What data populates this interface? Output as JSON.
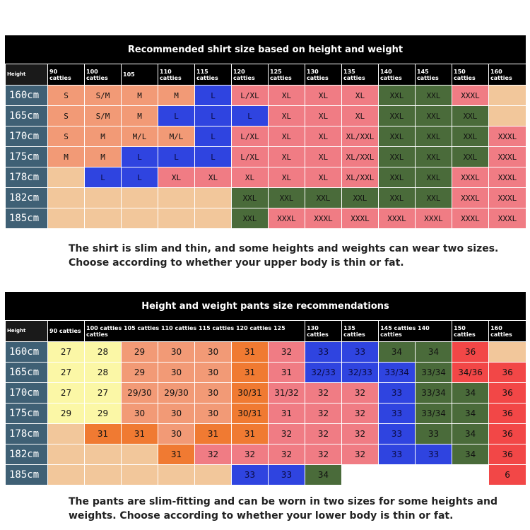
{
  "colors": {
    "tan": "#f2c79b",
    "salmon": "#f29a76",
    "blue": "#2f44e0",
    "pink": "#f07c84",
    "green": "#4a6b3a",
    "orange": "#f07a32",
    "yellow": "#fbf7a6",
    "red": "#f24747"
  },
  "shirt": {
    "title": "Recommended shirt size based on height and weight",
    "corner_label": "Height",
    "columns": [
      {
        "num": "90",
        "unit": "catties"
      },
      {
        "num": "100",
        "unit": "catties"
      },
      {
        "num": "105",
        "unit": ""
      },
      {
        "num": "110",
        "unit": "catties"
      },
      {
        "num": "115",
        "unit": "catties"
      },
      {
        "num": "120",
        "unit": "catties"
      },
      {
        "num": "125",
        "unit": "catties"
      },
      {
        "num": "130",
        "unit": "catties"
      },
      {
        "num": "135",
        "unit": "catties"
      },
      {
        "num": "140",
        "unit": "catties"
      },
      {
        "num": "145",
        "unit": "catties"
      },
      {
        "num": "150",
        "unit": "catties"
      },
      {
        "num": "160",
        "unit": "catties"
      }
    ],
    "rows": [
      {
        "height": "160cm",
        "cells": [
          {
            "v": "S",
            "c": "salmon"
          },
          {
            "v": "S/M",
            "c": "salmon"
          },
          {
            "v": "M",
            "c": "salmon"
          },
          {
            "v": "M",
            "c": "salmon"
          },
          {
            "v": "L",
            "c": "blue"
          },
          {
            "v": "L/XL",
            "c": "pink"
          },
          {
            "v": "XL",
            "c": "pink"
          },
          {
            "v": "XL",
            "c": "pink"
          },
          {
            "v": "XL",
            "c": "pink"
          },
          {
            "v": "XXL",
            "c": "green"
          },
          {
            "v": "XXL",
            "c": "green"
          },
          {
            "v": "XXXL",
            "c": "pink"
          },
          {
            "v": "",
            "c": "tan"
          }
        ]
      },
      {
        "height": "165cm",
        "cells": [
          {
            "v": "S",
            "c": "salmon"
          },
          {
            "v": "S/M",
            "c": "salmon"
          },
          {
            "v": "M",
            "c": "salmon"
          },
          {
            "v": "L",
            "c": "blue"
          },
          {
            "v": "L",
            "c": "blue"
          },
          {
            "v": "L",
            "c": "blue"
          },
          {
            "v": "XL",
            "c": "pink"
          },
          {
            "v": "XL",
            "c": "pink"
          },
          {
            "v": "XL",
            "c": "pink"
          },
          {
            "v": "XXL",
            "c": "green"
          },
          {
            "v": "XXL",
            "c": "green"
          },
          {
            "v": "XXL",
            "c": "green"
          },
          {
            "v": "",
            "c": "tan"
          }
        ]
      },
      {
        "height": "170cm",
        "cells": [
          {
            "v": "S",
            "c": "salmon"
          },
          {
            "v": "M",
            "c": "salmon"
          },
          {
            "v": "M/L",
            "c": "salmon"
          },
          {
            "v": "M/L",
            "c": "salmon"
          },
          {
            "v": "L",
            "c": "blue"
          },
          {
            "v": "L/XL",
            "c": "pink"
          },
          {
            "v": "XL",
            "c": "pink"
          },
          {
            "v": "XL",
            "c": "pink"
          },
          {
            "v": "XL/XXL",
            "c": "pink"
          },
          {
            "v": "XXL",
            "c": "green"
          },
          {
            "v": "XXL",
            "c": "green"
          },
          {
            "v": "XXL",
            "c": "green"
          },
          {
            "v": "XXXL",
            "c": "pink"
          }
        ]
      },
      {
        "height": "175cm",
        "cells": [
          {
            "v": "M",
            "c": "salmon"
          },
          {
            "v": "M",
            "c": "salmon"
          },
          {
            "v": "L",
            "c": "blue"
          },
          {
            "v": "L",
            "c": "blue"
          },
          {
            "v": "L",
            "c": "blue"
          },
          {
            "v": "L/XL",
            "c": "pink"
          },
          {
            "v": "XL",
            "c": "pink"
          },
          {
            "v": "XL",
            "c": "pink"
          },
          {
            "v": "XL/XXL",
            "c": "pink"
          },
          {
            "v": "XXL",
            "c": "green"
          },
          {
            "v": "XXL",
            "c": "green"
          },
          {
            "v": "XXL",
            "c": "green"
          },
          {
            "v": "XXXL",
            "c": "pink"
          }
        ]
      },
      {
        "height": "178cm",
        "cells": [
          {
            "v": "",
            "c": "tan"
          },
          {
            "v": "L",
            "c": "blue"
          },
          {
            "v": "L",
            "c": "blue"
          },
          {
            "v": "XL",
            "c": "pink"
          },
          {
            "v": "XL",
            "c": "pink"
          },
          {
            "v": "XL",
            "c": "pink"
          },
          {
            "v": "XL",
            "c": "pink"
          },
          {
            "v": "XL",
            "c": "pink"
          },
          {
            "v": "XL/XXL",
            "c": "pink"
          },
          {
            "v": "XXL",
            "c": "green"
          },
          {
            "v": "XXL",
            "c": "green"
          },
          {
            "v": "XXXL",
            "c": "pink"
          },
          {
            "v": "XXXL",
            "c": "pink"
          }
        ]
      },
      {
        "height": "182cm",
        "cells": [
          {
            "v": "",
            "c": "tan"
          },
          {
            "v": "",
            "c": "tan"
          },
          {
            "v": "",
            "c": "tan"
          },
          {
            "v": "",
            "c": "tan"
          },
          {
            "v": "",
            "c": "tan"
          },
          {
            "v": "XXL",
            "c": "green"
          },
          {
            "v": "XXL",
            "c": "green"
          },
          {
            "v": "XXL",
            "c": "green"
          },
          {
            "v": "XXL",
            "c": "green"
          },
          {
            "v": "XXL",
            "c": "green"
          },
          {
            "v": "XXL",
            "c": "green"
          },
          {
            "v": "XXXL",
            "c": "pink"
          },
          {
            "v": "XXXL",
            "c": "pink"
          }
        ]
      },
      {
        "height": "185cm",
        "cells": [
          {
            "v": "",
            "c": "tan"
          },
          {
            "v": "",
            "c": "tan"
          },
          {
            "v": "",
            "c": "tan"
          },
          {
            "v": "",
            "c": "tan"
          },
          {
            "v": "",
            "c": "tan"
          },
          {
            "v": "XXL",
            "c": "green"
          },
          {
            "v": "XXXL",
            "c": "pink"
          },
          {
            "v": "XXXL",
            "c": "pink"
          },
          {
            "v": "XXXL",
            "c": "pink"
          },
          {
            "v": "XXXL",
            "c": "pink"
          },
          {
            "v": "XXXL",
            "c": "pink"
          },
          {
            "v": "XXXL",
            "c": "pink"
          },
          {
            "v": "XXXL",
            "c": "pink"
          }
        ]
      }
    ],
    "note": "The shirt is slim and thin, and some heights and weights can wear two sizes. Choose according to whether your upper body is thin or fat."
  },
  "pants": {
    "title": "Height and weight pants size recommendations",
    "corner_label": "Height",
    "header": {
      "col90": "90 catties",
      "group1": "100 catties 105 catties 110 catties 115 catties 120 catties 125 catties",
      "col130": "130 catties",
      "col135": "135 catties",
      "group2": "145 catties 140 catties",
      "col150": "150 catties",
      "col160": "160 catties"
    },
    "rows": [
      {
        "height": "160cm",
        "cells": [
          {
            "v": "27",
            "c": "yellow"
          },
          {
            "v": "28",
            "c": "yellow"
          },
          {
            "v": "29",
            "c": "salmon"
          },
          {
            "v": "30",
            "c": "salmon"
          },
          {
            "v": "30",
            "c": "salmon"
          },
          {
            "v": "31",
            "c": "orange"
          },
          {
            "v": "32",
            "c": "pink"
          },
          {
            "v": "33",
            "c": "blue"
          },
          {
            "v": "33",
            "c": "blue"
          },
          {
            "v": "34",
            "c": "green"
          },
          {
            "v": "34",
            "c": "green"
          },
          {
            "v": "36",
            "c": "red"
          },
          {
            "v": "",
            "c": "tan"
          }
        ]
      },
      {
        "height": "165cm",
        "cells": [
          {
            "v": "27",
            "c": "yellow"
          },
          {
            "v": "28",
            "c": "yellow"
          },
          {
            "v": "29",
            "c": "salmon"
          },
          {
            "v": "30",
            "c": "salmon"
          },
          {
            "v": "30",
            "c": "salmon"
          },
          {
            "v": "31",
            "c": "orange"
          },
          {
            "v": "31",
            "c": "pink"
          },
          {
            "v": "32/33",
            "c": "blue"
          },
          {
            "v": "32/33",
            "c": "blue"
          },
          {
            "v": "33/34",
            "c": "blue"
          },
          {
            "v": "33/34",
            "c": "green"
          },
          {
            "v": "34/36",
            "c": "red"
          },
          {
            "v": "36",
            "c": "red"
          }
        ]
      },
      {
        "height": "170cm",
        "cells": [
          {
            "v": "27",
            "c": "yellow"
          },
          {
            "v": "27",
            "c": "yellow"
          },
          {
            "v": "29/30",
            "c": "salmon"
          },
          {
            "v": "29/30",
            "c": "salmon"
          },
          {
            "v": "30",
            "c": "salmon"
          },
          {
            "v": "30/31",
            "c": "orange"
          },
          {
            "v": "31/32",
            "c": "pink"
          },
          {
            "v": "32",
            "c": "pink"
          },
          {
            "v": "32",
            "c": "pink"
          },
          {
            "v": "33",
            "c": "blue"
          },
          {
            "v": "33/34",
            "c": "green"
          },
          {
            "v": "34",
            "c": "green"
          },
          {
            "v": "36",
            "c": "red"
          }
        ]
      },
      {
        "height": "175cm",
        "cells": [
          {
            "v": "29",
            "c": "yellow"
          },
          {
            "v": "29",
            "c": "yellow"
          },
          {
            "v": "30",
            "c": "salmon"
          },
          {
            "v": "30",
            "c": "salmon"
          },
          {
            "v": "30",
            "c": "salmon"
          },
          {
            "v": "30/31",
            "c": "orange"
          },
          {
            "v": "31",
            "c": "pink"
          },
          {
            "v": "32",
            "c": "pink"
          },
          {
            "v": "32",
            "c": "pink"
          },
          {
            "v": "33",
            "c": "blue"
          },
          {
            "v": "33/34",
            "c": "green"
          },
          {
            "v": "34",
            "c": "green"
          },
          {
            "v": "36",
            "c": "red"
          }
        ]
      },
      {
        "height": "178cm",
        "cells": [
          {
            "v": "",
            "c": "tan"
          },
          {
            "v": "31",
            "c": "orange"
          },
          {
            "v": "31",
            "c": "orange"
          },
          {
            "v": "30",
            "c": "salmon"
          },
          {
            "v": "31",
            "c": "orange"
          },
          {
            "v": "31",
            "c": "orange"
          },
          {
            "v": "32",
            "c": "pink"
          },
          {
            "v": "32",
            "c": "pink"
          },
          {
            "v": "32",
            "c": "pink"
          },
          {
            "v": "33",
            "c": "blue"
          },
          {
            "v": "33",
            "c": "green"
          },
          {
            "v": "34",
            "c": "green"
          },
          {
            "v": "36",
            "c": "red"
          }
        ]
      },
      {
        "height": "182cm",
        "cells": [
          {
            "v": "",
            "c": "tan"
          },
          {
            "v": "",
            "c": "tan"
          },
          {
            "v": "",
            "c": "tan"
          },
          {
            "v": "31",
            "c": "orange"
          },
          {
            "v": "32",
            "c": "pink"
          },
          {
            "v": "32",
            "c": "pink"
          },
          {
            "v": "32",
            "c": "pink"
          },
          {
            "v": "32",
            "c": "pink"
          },
          {
            "v": "32",
            "c": "pink"
          },
          {
            "v": "33",
            "c": "blue"
          },
          {
            "v": "33",
            "c": "blue"
          },
          {
            "v": "34",
            "c": "green"
          },
          {
            "v": "36",
            "c": "red"
          }
        ]
      },
      {
        "height": "185cm",
        "cells": [
          {
            "v": "",
            "c": "tan"
          },
          {
            "v": "",
            "c": "tan"
          },
          {
            "v": "",
            "c": "tan"
          },
          {
            "v": "",
            "c": "tan"
          },
          {
            "v": "",
            "c": "tan"
          },
          {
            "v": "33",
            "c": "blue"
          },
          {
            "v": "33",
            "c": "blue"
          },
          {
            "v": "34",
            "c": "green"
          },
          {
            "v": "",
            "c": "white"
          },
          {
            "v": "",
            "c": "white"
          },
          {
            "v": "",
            "c": "white"
          },
          {
            "v": "",
            "c": "white"
          },
          {
            "v": "6",
            "c": "red"
          }
        ]
      }
    ],
    "note": "The pants are slim-fitting and can be worn in two sizes for some heights and weights. Choose according to whether your lower body is thin or fat."
  }
}
